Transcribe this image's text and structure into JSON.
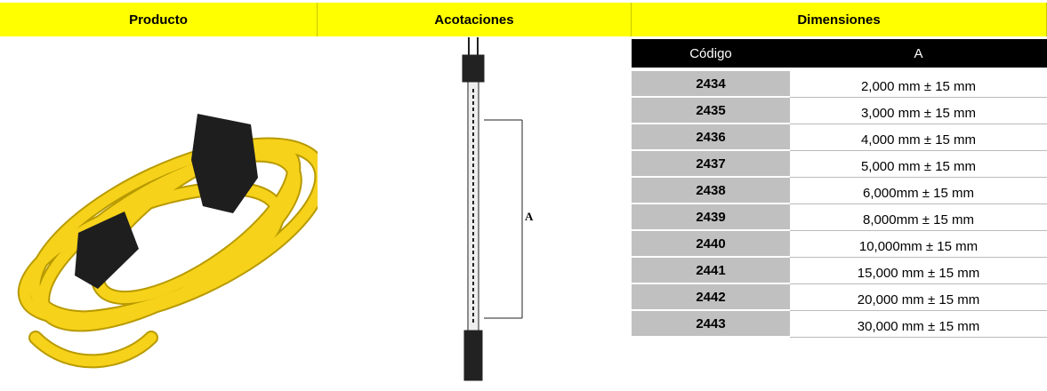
{
  "header": {
    "columns": [
      "Producto",
      "Acotaciones",
      "Dimensiones"
    ]
  },
  "table": {
    "header": [
      "Código",
      "A"
    ],
    "rows": [
      [
        "2434",
        "2,000 mm ± 15 mm"
      ],
      [
        "2435",
        "3,000 mm ± 15 mm"
      ],
      [
        "2436",
        "4,000 mm ± 15 mm"
      ],
      [
        "2437",
        "5,000 mm ± 15 mm"
      ],
      [
        "2438",
        "6,000mm ± 15 mm"
      ],
      [
        "2439",
        "8,000mm ± 15 mm"
      ],
      [
        "2440",
        "10,000mm ± 15 mm"
      ],
      [
        "2441",
        "15,000 mm ± 15 mm"
      ],
      [
        "2442",
        "20,000 mm ± 15 mm"
      ],
      [
        "2443",
        "30,000 mm ± 15 mm"
      ]
    ]
  },
  "diagram": {
    "label": "A"
  }
}
